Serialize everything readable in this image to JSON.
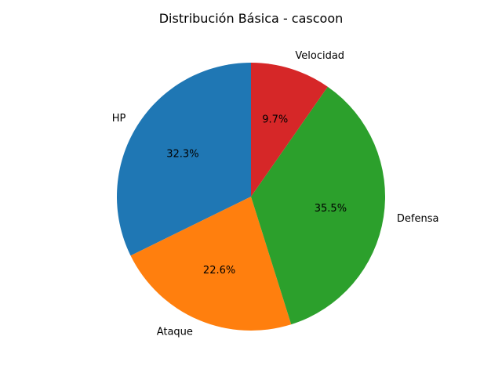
{
  "chart_data": {
    "type": "pie",
    "title": "Distribución Básica - cascoon",
    "categories": [
      "HP",
      "Ataque",
      "Defensa",
      "Velocidad"
    ],
    "values": [
      32.3,
      22.6,
      35.5,
      9.7
    ],
    "percent_labels": [
      "32.3%",
      "22.6%",
      "35.5%",
      "9.7%"
    ],
    "colors": [
      "#1f77b4",
      "#ff7f0e",
      "#2ca02c",
      "#d62728"
    ],
    "start_angle_deg": 90,
    "direction": "counterclockwise"
  }
}
